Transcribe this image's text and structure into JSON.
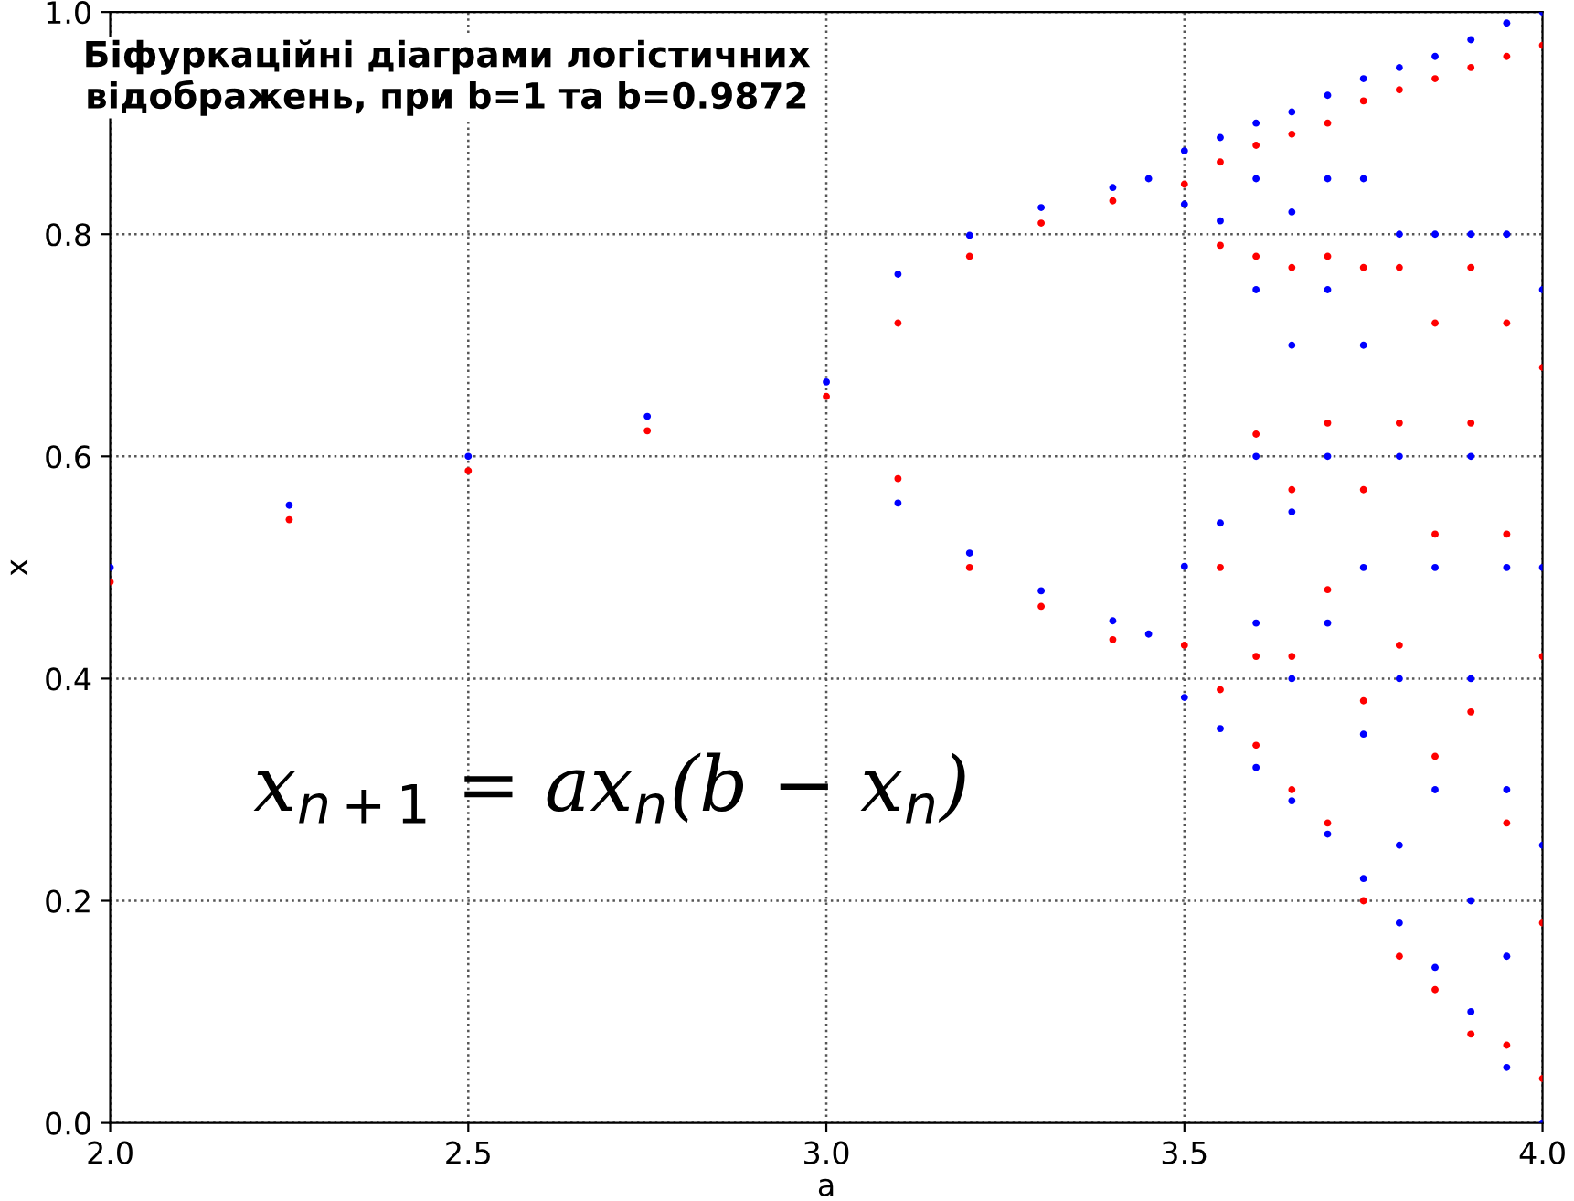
{
  "chart_data": {
    "type": "scatter",
    "title": "Біфуркаційні діаграми логістичних відображень, при b=1 та b=0.9872",
    "xlabel": "a",
    "ylabel": "x",
    "xlim": [
      2,
      4
    ],
    "ylim": [
      0,
      1
    ],
    "xticks": [
      {
        "value": 2,
        "label": "2.0"
      },
      {
        "value": 2.5,
        "label": "2.5"
      },
      {
        "value": 3,
        "label": "3.0"
      },
      {
        "value": 3.5,
        "label": "3.5"
      },
      {
        "value": 4,
        "label": "4.0"
      }
    ],
    "yticks": [
      {
        "value": 0,
        "label": "0.0"
      },
      {
        "value": 0.2,
        "label": "0.2"
      },
      {
        "value": 0.4,
        "label": "0.4"
      },
      {
        "value": 0.6,
        "label": "0.6"
      },
      {
        "value": 0.8,
        "label": "0.8"
      },
      {
        "value": 1,
        "label": "1.0"
      }
    ],
    "grid": true,
    "marker": "circle",
    "legend": false,
    "annotations": [
      "x$_{n+1}$ = ax$_{n}$(b − x$_{n}$)"
    ],
    "series": [
      {
        "color": "#0000ff",
        "x": [
          2.0,
          2.25,
          2.5,
          2.75,
          3.0,
          3.1,
          3.1,
          3.2,
          3.2,
          3.3,
          3.3,
          3.4,
          3.4,
          3.45,
          3.45,
          3.5,
          3.5,
          3.5,
          3.5,
          3.55,
          3.55,
          3.55,
          3.55,
          3.6,
          3.6,
          3.6,
          3.6,
          3.6,
          3.6,
          3.65,
          3.65,
          3.65,
          3.65,
          3.65,
          3.65,
          3.7,
          3.7,
          3.7,
          3.7,
          3.7,
          3.7,
          3.75,
          3.75,
          3.75,
          3.75,
          3.75,
          3.75,
          3.8,
          3.8,
          3.8,
          3.8,
          3.8,
          3.8,
          3.85,
          3.85,
          3.85,
          3.85,
          3.85,
          3.9,
          3.9,
          3.9,
          3.9,
          3.9,
          3.9,
          3.95,
          3.95,
          3.95,
          3.95,
          3.95,
          3.95,
          4.0,
          4.0,
          4.0,
          4.0,
          4.0
        ],
        "values": [
          0.5,
          0.556,
          0.6,
          0.636,
          0.667,
          0.764,
          0.558,
          0.799,
          0.513,
          0.824,
          0.479,
          0.842,
          0.452,
          0.85,
          0.44,
          0.875,
          0.827,
          0.501,
          0.383,
          0.887,
          0.812,
          0.54,
          0.355,
          0.9,
          0.85,
          0.75,
          0.6,
          0.45,
          0.32,
          0.91,
          0.82,
          0.7,
          0.55,
          0.4,
          0.29,
          0.925,
          0.85,
          0.75,
          0.6,
          0.45,
          0.26,
          0.94,
          0.85,
          0.7,
          0.5,
          0.35,
          0.22,
          0.95,
          0.8,
          0.6,
          0.4,
          0.25,
          0.18,
          0.96,
          0.8,
          0.5,
          0.3,
          0.14,
          0.975,
          0.8,
          0.6,
          0.4,
          0.2,
          0.1,
          0.99,
          0.8,
          0.5,
          0.3,
          0.15,
          0.05,
          1.0,
          0.75,
          0.5,
          0.25,
          0.0
        ]
      },
      {
        "color": "#ff0000",
        "x": [
          2.0,
          2.25,
          2.5,
          2.75,
          3.0,
          3.1,
          3.1,
          3.2,
          3.2,
          3.3,
          3.3,
          3.4,
          3.4,
          3.5,
          3.5,
          3.55,
          3.55,
          3.55,
          3.55,
          3.6,
          3.6,
          3.6,
          3.6,
          3.6,
          3.65,
          3.65,
          3.65,
          3.65,
          3.65,
          3.7,
          3.7,
          3.7,
          3.7,
          3.7,
          3.75,
          3.75,
          3.75,
          3.75,
          3.75,
          3.8,
          3.8,
          3.8,
          3.8,
          3.8,
          3.85,
          3.85,
          3.85,
          3.85,
          3.85,
          3.9,
          3.9,
          3.9,
          3.9,
          3.9,
          3.95,
          3.95,
          3.95,
          3.95,
          3.95,
          4.0,
          4.0,
          4.0,
          4.0,
          4.0
        ],
        "values": [
          0.487,
          0.543,
          0.587,
          0.623,
          0.654,
          0.72,
          0.58,
          0.78,
          0.5,
          0.81,
          0.465,
          0.83,
          0.435,
          0.845,
          0.43,
          0.865,
          0.79,
          0.5,
          0.39,
          0.88,
          0.78,
          0.62,
          0.42,
          0.34,
          0.89,
          0.77,
          0.57,
          0.42,
          0.3,
          0.9,
          0.78,
          0.63,
          0.48,
          0.27,
          0.92,
          0.77,
          0.57,
          0.38,
          0.2,
          0.93,
          0.77,
          0.63,
          0.43,
          0.15,
          0.94,
          0.72,
          0.53,
          0.33,
          0.12,
          0.95,
          0.77,
          0.63,
          0.37,
          0.08,
          0.96,
          0.72,
          0.53,
          0.27,
          0.07,
          0.97,
          0.68,
          0.42,
          0.18,
          0.04
        ]
      }
    ]
  }
}
